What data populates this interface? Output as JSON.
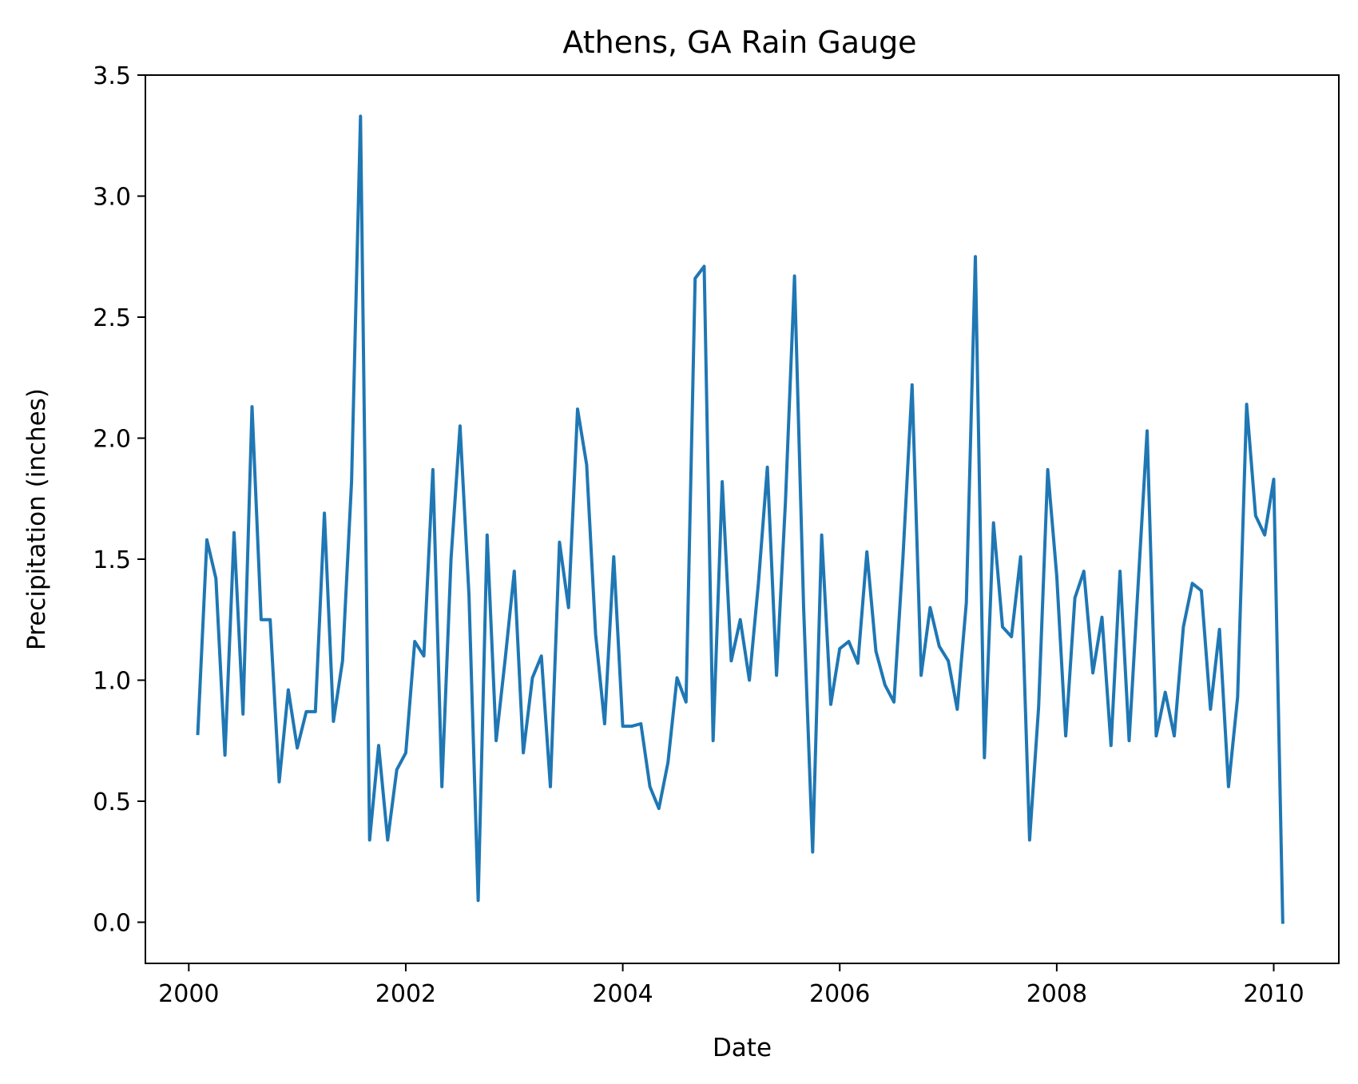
{
  "chart_data": {
    "type": "line",
    "title": "Athens, GA Rain Gauge",
    "xlabel": "Date",
    "ylabel": "Precipitation (inches)",
    "xlim": [
      1999.6,
      2010.6
    ],
    "ylim": [
      -0.17,
      3.5
    ],
    "grid": false,
    "x_ticks": [
      2000,
      2002,
      2004,
      2006,
      2008,
      2010
    ],
    "x_tick_labels": [
      "2000",
      "2002",
      "2004",
      "2006",
      "2008",
      "2010"
    ],
    "y_ticks": [
      0.0,
      0.5,
      1.0,
      1.5,
      2.0,
      2.5,
      3.0,
      3.5
    ],
    "y_tick_labels": [
      "0.0",
      "0.5",
      "1.0",
      "1.5",
      "2.0",
      "2.5",
      "3.0",
      "3.5"
    ],
    "series": [
      {
        "color": "#1f77b4",
        "x": [
          2000.083,
          2000.167,
          2000.25,
          2000.333,
          2000.417,
          2000.5,
          2000.583,
          2000.667,
          2000.75,
          2000.833,
          2000.917,
          2001.0,
          2001.083,
          2001.167,
          2001.25,
          2001.333,
          2001.417,
          2001.5,
          2001.583,
          2001.667,
          2001.75,
          2001.833,
          2001.917,
          2002.0,
          2002.083,
          2002.167,
          2002.25,
          2002.333,
          2002.417,
          2002.5,
          2002.583,
          2002.667,
          2002.75,
          2002.833,
          2002.917,
          2003.0,
          2003.083,
          2003.167,
          2003.25,
          2003.333,
          2003.417,
          2003.5,
          2003.583,
          2003.667,
          2003.75,
          2003.833,
          2003.917,
          2004.0,
          2004.083,
          2004.167,
          2004.25,
          2004.333,
          2004.417,
          2004.5,
          2004.583,
          2004.667,
          2004.75,
          2004.833,
          2004.917,
          2005.0,
          2005.083,
          2005.167,
          2005.25,
          2005.333,
          2005.417,
          2005.5,
          2005.583,
          2005.667,
          2005.75,
          2005.833,
          2005.917,
          2006.0,
          2006.083,
          2006.167,
          2006.25,
          2006.333,
          2006.417,
          2006.5,
          2006.583,
          2006.667,
          2006.75,
          2006.833,
          2006.917,
          2007.0,
          2007.083,
          2007.167,
          2007.25,
          2007.333,
          2007.417,
          2007.5,
          2007.583,
          2007.667,
          2007.75,
          2007.833,
          2007.917,
          2008.0,
          2008.083,
          2008.167,
          2008.25,
          2008.333,
          2008.417,
          2008.5,
          2008.583,
          2008.667,
          2008.75,
          2008.833,
          2008.917,
          2009.0,
          2009.083,
          2009.167,
          2009.25,
          2009.333,
          2009.417,
          2009.5,
          2009.583,
          2009.667,
          2009.75,
          2009.833,
          2009.917,
          2010.0,
          2010.083
        ],
        "values": [
          0.78,
          1.58,
          1.42,
          0.69,
          1.61,
          0.86,
          2.13,
          1.25,
          1.25,
          0.58,
          0.96,
          0.72,
          0.87,
          0.87,
          1.69,
          0.83,
          1.08,
          1.82,
          3.33,
          0.34,
          0.73,
          0.34,
          0.63,
          0.7,
          1.16,
          1.1,
          1.87,
          0.56,
          1.5,
          2.05,
          1.35,
          0.09,
          1.6,
          0.75,
          1.09,
          1.45,
          0.7,
          1.01,
          1.1,
          0.56,
          1.57,
          1.3,
          2.12,
          1.89,
          1.19,
          0.82,
          1.51,
          0.81,
          0.81,
          0.82,
          0.56,
          0.47,
          0.66,
          1.01,
          0.91,
          2.66,
          2.71,
          0.75,
          1.82,
          1.08,
          1.25,
          1.0,
          1.4,
          1.88,
          1.02,
          1.74,
          2.67,
          1.3,
          0.29,
          1.6,
          0.9,
          1.13,
          1.16,
          1.07,
          1.53,
          1.12,
          0.98,
          0.91,
          1.51,
          2.22,
          1.02,
          1.3,
          1.14,
          1.08,
          0.88,
          1.32,
          2.75,
          0.68,
          1.65,
          1.22,
          1.18,
          1.51,
          0.34,
          0.89,
          1.87,
          1.43,
          0.77,
          1.34,
          1.45,
          1.03,
          1.26,
          0.73,
          1.45,
          0.75,
          1.39,
          2.03,
          0.77,
          0.95,
          0.77,
          1.22,
          1.4,
          1.37,
          0.88,
          1.21,
          0.56,
          0.93,
          2.14,
          1.68,
          1.6,
          1.83,
          0.0
        ]
      }
    ]
  }
}
